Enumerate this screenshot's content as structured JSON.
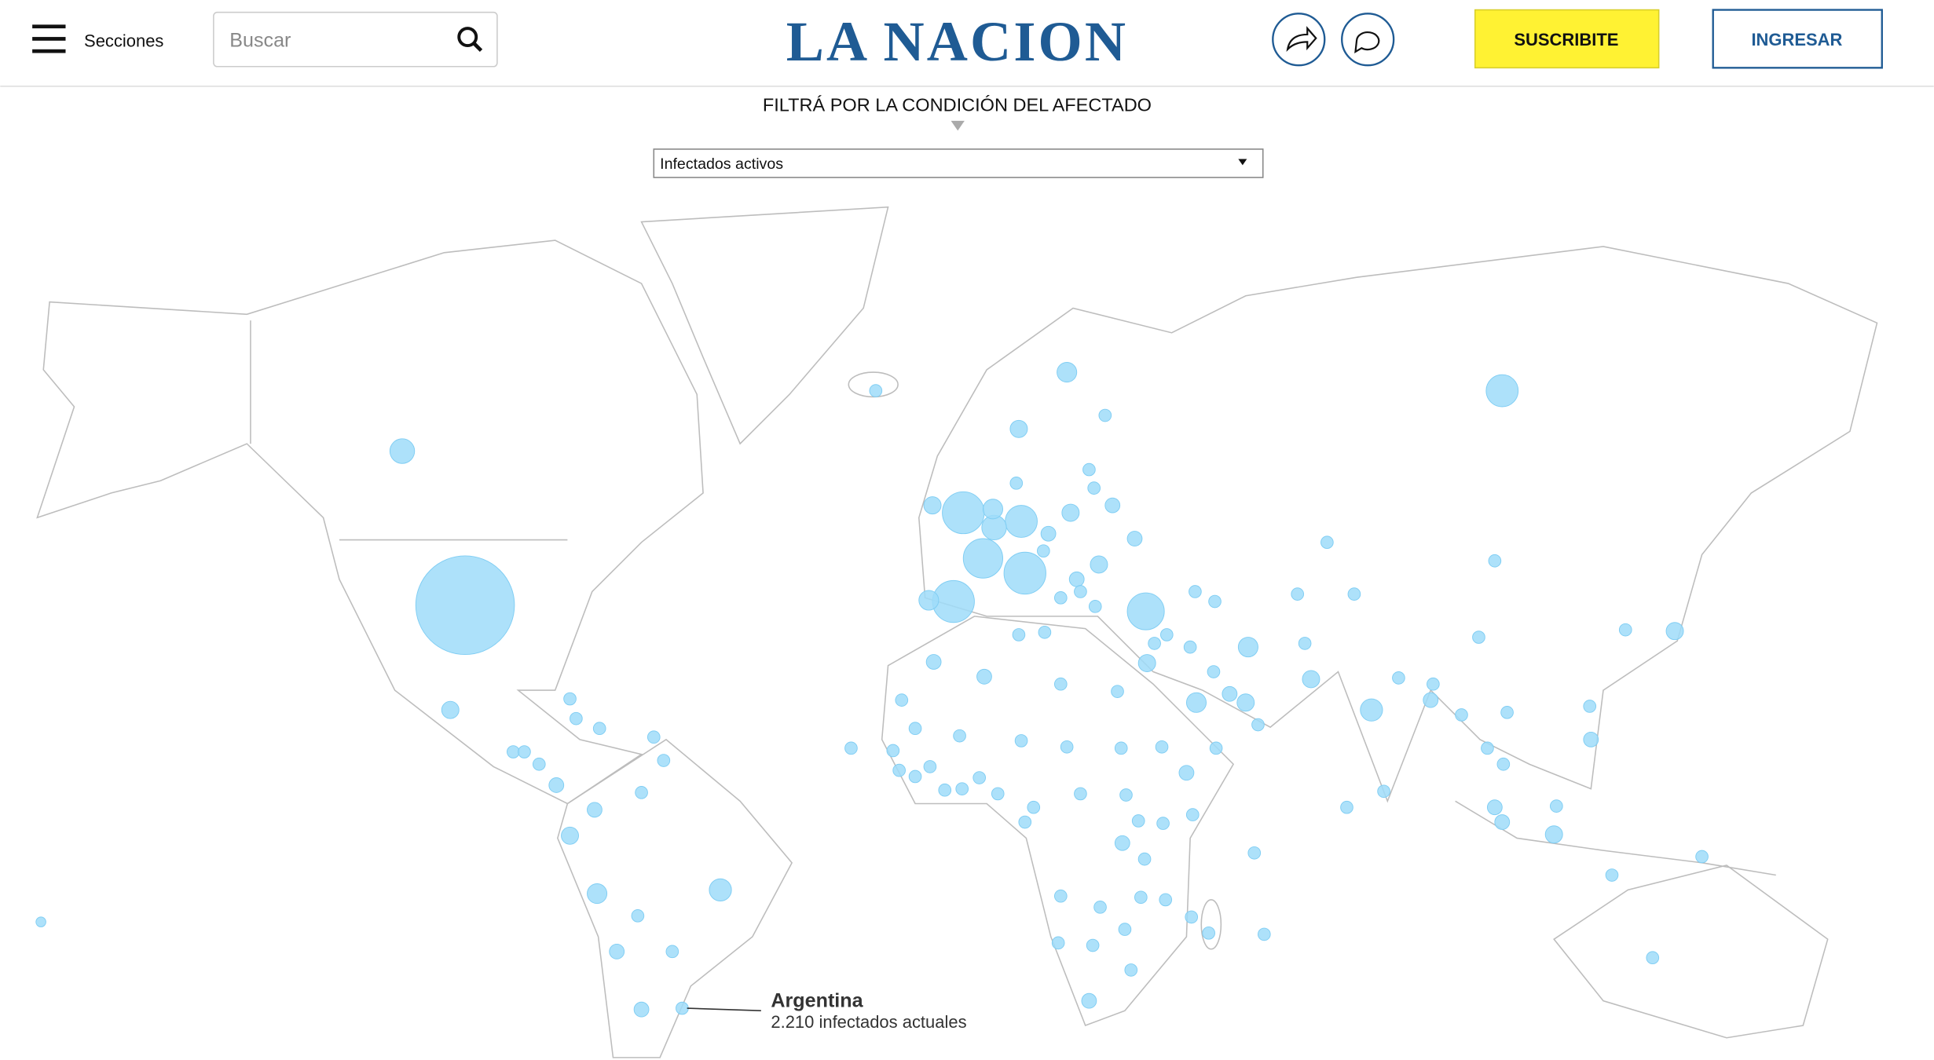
{
  "header": {
    "menu": "Secciones",
    "search_placeholder": "Buscar",
    "logo": "LA NACION",
    "subscribe": "SUSCRIBITE",
    "login": "INGRESAR"
  },
  "filter": {
    "label": "FILTRÁ POR LA CONDICIÓN DEL AFECTADO",
    "selected": "Infectados activos"
  },
  "map": {
    "annotation": {
      "country": "Argentina",
      "detail": "2.210 infectados actuales"
    }
  }
}
